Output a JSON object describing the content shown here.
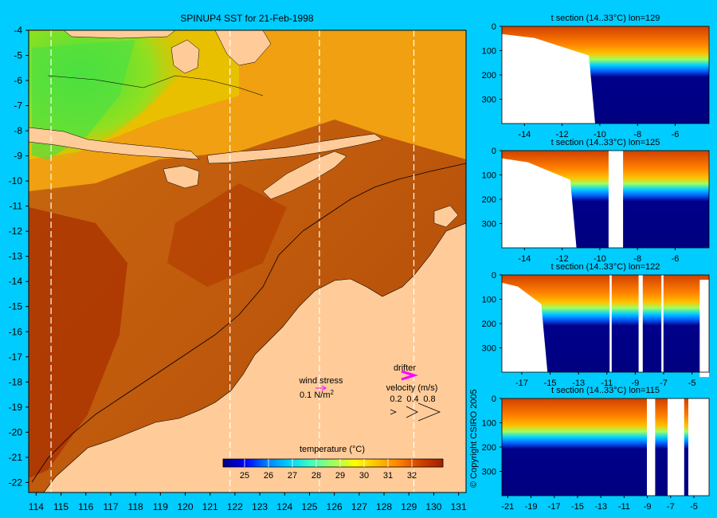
{
  "chart_data": [
    {
      "type": "heatmap",
      "title": "SPINUP4 SST for 21-Feb-1998",
      "x_ticks": [
        114,
        115,
        116,
        117,
        118,
        119,
        120,
        121,
        122,
        123,
        124,
        125,
        126,
        127,
        128,
        129,
        130,
        131
      ],
      "y_ticks": [
        -4,
        -5,
        -6,
        -7,
        -8,
        -9,
        -10,
        -11,
        -12,
        -13,
        -14,
        -15,
        -16,
        -17,
        -18,
        -19,
        -20,
        -21,
        -22
      ],
      "xlim": [
        113.7,
        131.3
      ],
      "ylim": [
        -22.4,
        -4
      ],
      "section_lines_lon": [
        114.6,
        121.8,
        125.4,
        129.2
      ],
      "colorbar": {
        "title": "temperature (°C)",
        "ticks": [
          25,
          26,
          27,
          28,
          29,
          30,
          31,
          32
        ],
        "range": [
          24.1,
          33.3
        ],
        "colors": [
          "#00007f",
          "#0000ff",
          "#0080ff",
          "#00d0ff",
          "#40ffbf",
          "#a0ff60",
          "#ffff00",
          "#ffc000",
          "#ff8000",
          "#d04000",
          "#a02000"
        ]
      },
      "legend": {
        "wind_stress_label": "wind stress",
        "wind_stress_value": "0.1 N/m",
        "wind_stress_sup": "2",
        "drifter_label": "drifter",
        "velocity_label": "velocity (m/s)",
        "velocity_values": [
          "0.2",
          "0.4",
          "0.8"
        ],
        "arrow_color": "#ff00ff"
      },
      "copyright": "© Copyright CSIRO 2005",
      "land_color": "#ffcc99"
    }
  ],
  "sections": [
    {
      "title": "t section (14..33°C) lon=129",
      "x_ticks": [
        -14,
        -12,
        -10,
        -8,
        -6
      ],
      "y_ticks": [
        0,
        100,
        200,
        300
      ],
      "xlim": [
        -15.2,
        -4.2
      ],
      "ylim": [
        0,
        400
      ]
    },
    {
      "title": "t section (14..33°C) lon=125",
      "x_ticks": [
        -14,
        -12,
        -10,
        -8,
        -6
      ],
      "y_ticks": [
        0,
        100,
        200,
        300
      ],
      "xlim": [
        -15.2,
        -4.2
      ],
      "ylim": [
        0,
        400
      ]
    },
    {
      "title": "t section (14..33°C) lon=122",
      "x_ticks": [
        -17,
        -15,
        -13,
        -11,
        -9,
        -7,
        -5
      ],
      "y_ticks": [
        0,
        100,
        200,
        300
      ],
      "xlim": [
        -18.4,
        -3.8
      ],
      "ylim": [
        0,
        400
      ]
    },
    {
      "title": "t section (14..33°C) lon=115",
      "x_ticks": [
        -21,
        -19,
        -17,
        -15,
        -13,
        -11,
        -9,
        -7,
        -5
      ],
      "y_ticks": [
        0,
        100,
        200,
        300
      ],
      "xlim": [
        -21.5,
        -3.7
      ],
      "ylim": [
        0,
        400
      ]
    }
  ]
}
